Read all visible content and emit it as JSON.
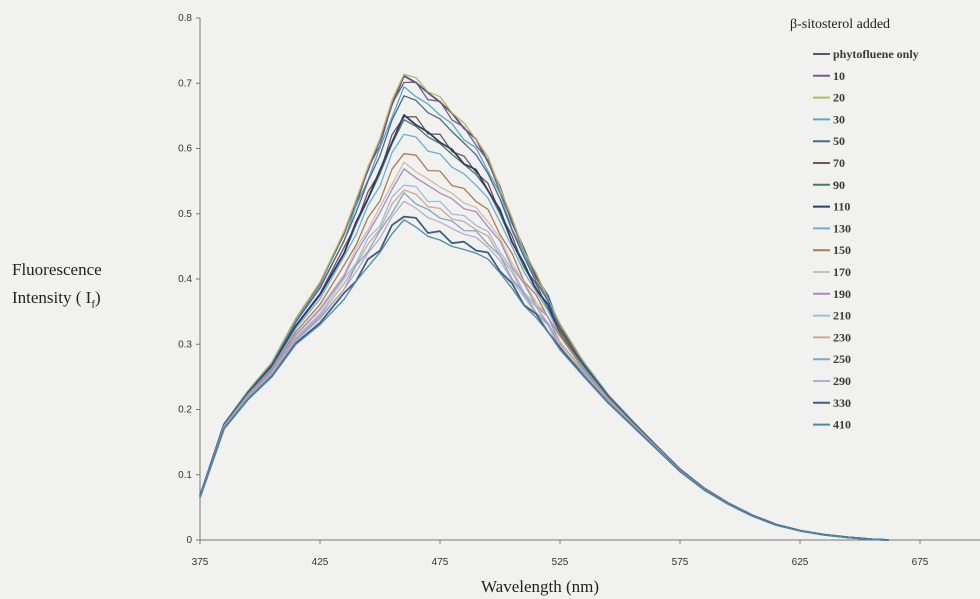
{
  "chart_data": {
    "type": "line",
    "title": "",
    "xlabel": "Wavelength (nm)",
    "ylabel_line1": "Fluorescence",
    "ylabel_line2_prefix": "Intensity ( I",
    "ylabel_subscript": "f",
    "ylabel_line2_suffix": ")",
    "xlim": [
      375,
      700
    ],
    "ylim": [
      0,
      0.8
    ],
    "x_ticks": [
      "375",
      "425",
      "475",
      "525",
      "575",
      "625",
      "675"
    ],
    "y_ticks": [
      "0",
      "0.1",
      "0.2",
      "0.3",
      "0.4",
      "0.5",
      "0.6",
      "0.7",
      "0.8"
    ],
    "grid": false,
    "legend_title": "β-sitosterol added",
    "legend_position": "right",
    "x": [
      375,
      385,
      395,
      405,
      415,
      425,
      435,
      440,
      445,
      450,
      455,
      460,
      465,
      470,
      475,
      480,
      485,
      490,
      495,
      500,
      505,
      510,
      515,
      520,
      525,
      535,
      545,
      555,
      565,
      575,
      585,
      595,
      605,
      615,
      625,
      635,
      645,
      655,
      662
    ],
    "base_shape": [
      0.065,
      0.17,
      0.215,
      0.25,
      0.3,
      0.33,
      0.37,
      0.395,
      0.42,
      0.44,
      0.47,
      0.49,
      0.48,
      0.465,
      0.46,
      0.45,
      0.445,
      0.44,
      0.43,
      0.41,
      0.385,
      0.36,
      0.34,
      0.32,
      0.29,
      0.25,
      0.21,
      0.175,
      0.14,
      0.105,
      0.077,
      0.055,
      0.037,
      0.023,
      0.014,
      0.008,
      0.004,
      0.001,
      0.0
    ],
    "series": [
      {
        "name": "phytofluene only",
        "color": "#50597a",
        "peak": 0.72
      },
      {
        "name": "10",
        "color": "#7b5a8c",
        "peak": 0.715
      },
      {
        "name": "20",
        "color": "#b9b85a",
        "peak": 0.725
      },
      {
        "name": "30",
        "color": "#5aa7c4",
        "peak": 0.7
      },
      {
        "name": "50",
        "color": "#4a6b8c",
        "peak": 0.69
      },
      {
        "name": "70",
        "color": "#7a5250",
        "peak": 0.66
      },
      {
        "name": "90",
        "color": "#4a7a6a",
        "peak": 0.65
      },
      {
        "name": "110",
        "color": "#2e3e6a",
        "peak": 0.655
      },
      {
        "name": "130",
        "color": "#6aaed6",
        "peak": 0.63
      },
      {
        "name": "150",
        "color": "#b07a50",
        "peak": 0.6
      },
      {
        "name": "170",
        "color": "#c9c2a8",
        "peak": 0.58
      },
      {
        "name": "190",
        "color": "#a98ac0",
        "peak": 0.57
      },
      {
        "name": "210",
        "color": "#9cbde0",
        "peak": 0.55
      },
      {
        "name": "230",
        "color": "#d2a890",
        "peak": 0.54
      },
      {
        "name": "250",
        "color": "#7aa9c7",
        "peak": 0.53
      },
      {
        "name": "290",
        "color": "#c0a9c9",
        "peak": 0.52
      },
      {
        "name": "330",
        "color": "#3e5e83",
        "peak": 0.5
      },
      {
        "name": "410",
        "color": "#4f8aa8",
        "peak": 0.49
      }
    ]
  }
}
